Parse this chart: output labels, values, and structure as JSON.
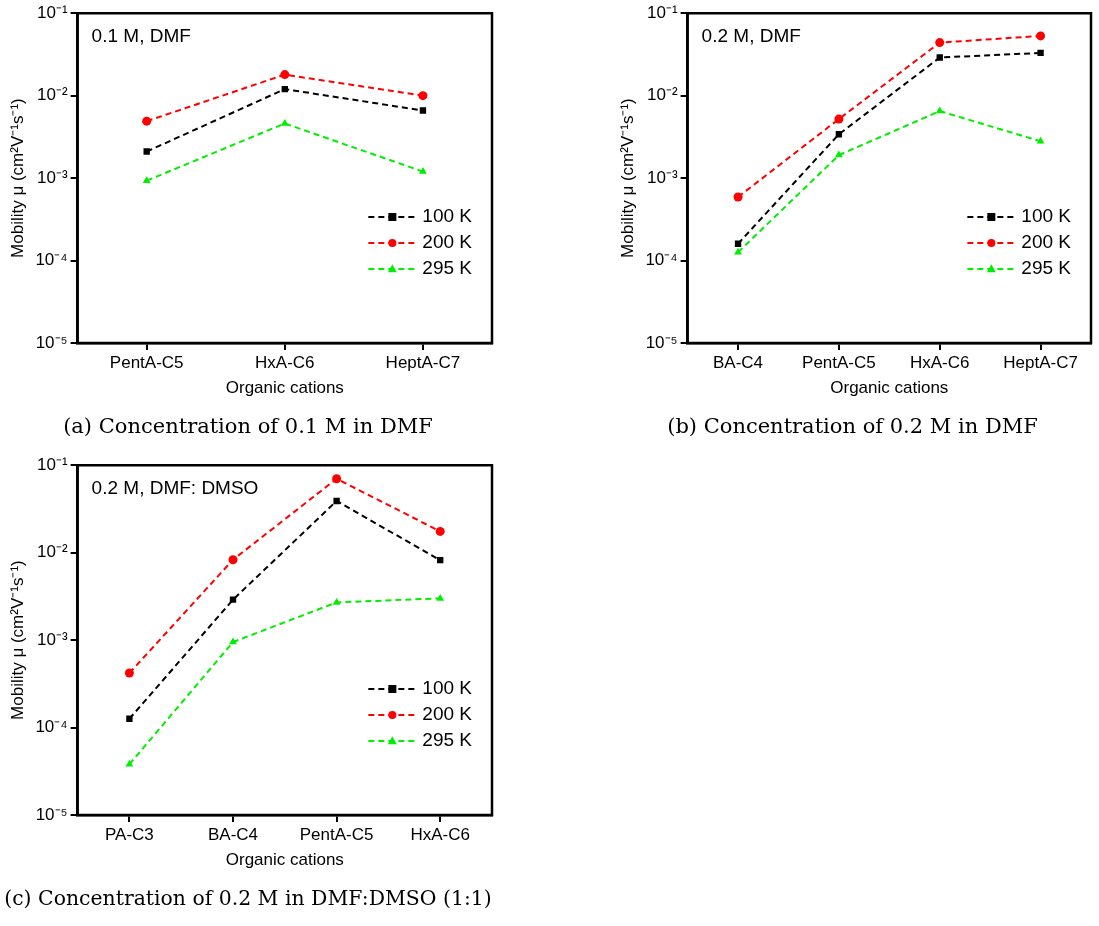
{
  "chart_data": [
    {
      "type": "line",
      "title": "(a) Concentration of 0.1 M in DMF",
      "xlabel": "Organic cations",
      "ylabel": "Mobility μ (cm²V⁻¹s⁻¹)",
      "annotations": [
        "0.1 M, DMF"
      ],
      "categories": [
        "PentA-C5",
        "HxA-C6",
        "HeptA-C7"
      ],
      "series": [
        {
          "name": "100 K",
          "color": "#000000",
          "marker": "square",
          "values": [
            0.0021,
            0.012,
            0.0066
          ]
        },
        {
          "name": "200 K",
          "color": "#ff0000",
          "marker": "circle",
          "values": [
            0.0049,
            0.018,
            0.01
          ]
        },
        {
          "name": "295 K",
          "color": "#00ee00",
          "marker": "triangle",
          "values": [
            0.00093,
            0.0046,
            0.0012
          ]
        }
      ],
      "log": "y",
      "ylim": [
        1e-05,
        0.1
      ],
      "yticks": [
        {
          "value": 1e-05,
          "label": "10⁻⁵"
        },
        {
          "value": 0.0001,
          "label": "10⁻⁴"
        },
        {
          "value": 0.001,
          "label": "10⁻³"
        },
        {
          "value": 0.01,
          "label": "10⁻²"
        },
        {
          "value": 0.1,
          "label": "10⁻¹"
        }
      ],
      "grid": false,
      "legend": "bottom right",
      "line_style": "dashed"
    },
    {
      "type": "line",
      "title": "(b) Concentration of 0.2 M in DMF",
      "xlabel": "Organic cations",
      "ylabel": "Mobility μ (cm²V⁻¹s⁻¹)",
      "annotations": [
        "0.2 M, DMF"
      ],
      "categories": [
        "BA-C4",
        "PentA-C5",
        "HxA-C6",
        "HeptA-C7"
      ],
      "series": [
        {
          "name": "100 K",
          "color": "#000000",
          "marker": "square",
          "values": [
            0.00016,
            0.0034,
            0.029,
            0.033
          ]
        },
        {
          "name": "200 K",
          "color": "#ff0000",
          "marker": "circle",
          "values": [
            0.00059,
            0.0052,
            0.044,
            0.053
          ]
        },
        {
          "name": "295 K",
          "color": "#00ee00",
          "marker": "triangle",
          "values": [
            0.000126,
            0.0019,
            0.0065,
            0.0028
          ]
        }
      ],
      "log": "y",
      "ylim": [
        1e-05,
        0.1
      ],
      "yticks": [
        {
          "value": 1e-05,
          "label": "10⁻⁵"
        },
        {
          "value": 0.0001,
          "label": "10⁻⁴"
        },
        {
          "value": 0.001,
          "label": "10⁻³"
        },
        {
          "value": 0.01,
          "label": "10⁻²"
        },
        {
          "value": 0.1,
          "label": "10⁻¹"
        }
      ],
      "grid": false,
      "legend": "bottom right",
      "line_style": "dashed"
    },
    {
      "type": "line",
      "title": "(c) Concentration of 0.2 M in DMF:DMSO (1:1)",
      "xlabel": "Organic cations",
      "ylabel": "Mobility μ (cm²V⁻¹s⁻¹)",
      "annotations": [
        "0.2 M, DMF: DMSO"
      ],
      "categories": [
        "PA-C3",
        "BA-C4",
        "PentA-C5",
        "HxA-C6"
      ],
      "series": [
        {
          "name": "100 K",
          "color": "#000000",
          "marker": "square",
          "values": [
            0.000126,
            0.0029,
            0.039,
            0.0082
          ]
        },
        {
          "name": "200 K",
          "color": "#ff0000",
          "marker": "circle",
          "values": [
            0.00042,
            0.0083,
            0.07,
            0.0175
          ]
        },
        {
          "name": "295 K",
          "color": "#00ee00",
          "marker": "triangle",
          "values": [
            3.8e-05,
            0.00095,
            0.0027,
            0.003
          ]
        }
      ],
      "log": "y",
      "ylim": [
        1e-05,
        0.1
      ],
      "yticks": [
        {
          "value": 1e-05,
          "label": "10⁻⁵"
        },
        {
          "value": 0.0001,
          "label": "10⁻⁴"
        },
        {
          "value": 0.001,
          "label": "10⁻³"
        },
        {
          "value": 0.01,
          "label": "10⁻²"
        },
        {
          "value": 0.1,
          "label": "10⁻¹"
        }
      ],
      "grid": false,
      "legend": "bottom right",
      "line_style": "dashed"
    }
  ]
}
